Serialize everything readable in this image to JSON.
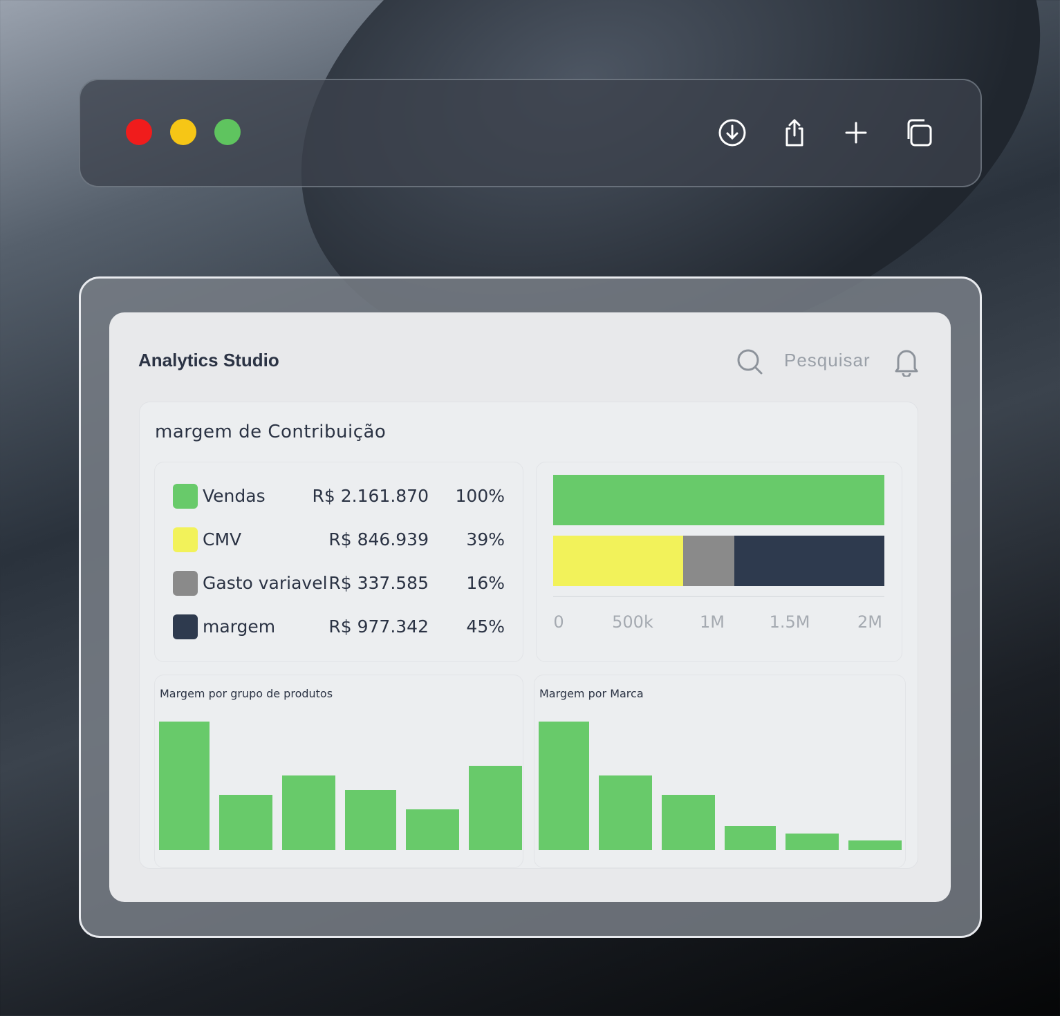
{
  "window": {
    "controls": [
      "close",
      "minimize",
      "maximize"
    ],
    "colors": {
      "close": "#f01c1c",
      "minimize": "#f6c616",
      "maximize": "#5fc45f"
    },
    "toolbar_icons": [
      "download-icon",
      "share-icon",
      "plus-icon",
      "copy-icon"
    ]
  },
  "app": {
    "title": "Analytics Studio",
    "search_placeholder": "Pesquisar"
  },
  "panel": {
    "title": "margem de Contribuição",
    "rows": [
      {
        "label": "Vendas",
        "value": "R$ 2.161.870",
        "percent": "100%",
        "color": "#68ca6a",
        "amount": 2161870
      },
      {
        "label": "CMV",
        "value": "R$ 846.939",
        "percent": "39%",
        "color": "#f2f25a",
        "amount": 846939
      },
      {
        "label": "Gasto variavel",
        "value": "R$ 337.585",
        "percent": "16%",
        "color": "#8a8a8a",
        "amount": 337585
      },
      {
        "label": "margem",
        "value": "R$ 977.342",
        "percent": "45%",
        "color": "#2e3a4e",
        "amount": 977342
      }
    ]
  },
  "chart_data": [
    {
      "type": "bar",
      "orientation": "horizontal-stacked",
      "xticks": [
        "0",
        "500k",
        "1M",
        "1.5M",
        "2M"
      ],
      "xlim": [
        0,
        2161870
      ],
      "series": [
        {
          "name": "Vendas",
          "values": [
            2161870,
            0
          ]
        },
        {
          "name": "CMV",
          "values": [
            0,
            846939
          ]
        },
        {
          "name": "Gasto variavel",
          "values": [
            0,
            337585
          ]
        },
        {
          "name": "margem",
          "values": [
            0,
            977342
          ]
        }
      ]
    },
    {
      "type": "bar",
      "title": "Margem por grupo de produtos",
      "values": [
        186,
        80,
        108,
        87,
        59,
        122
      ],
      "color": "#68ca6a"
    },
    {
      "type": "bar",
      "title": "Margem por Marca",
      "values": [
        186,
        108,
        80,
        35,
        24,
        14
      ],
      "color": "#68ca6a"
    }
  ]
}
